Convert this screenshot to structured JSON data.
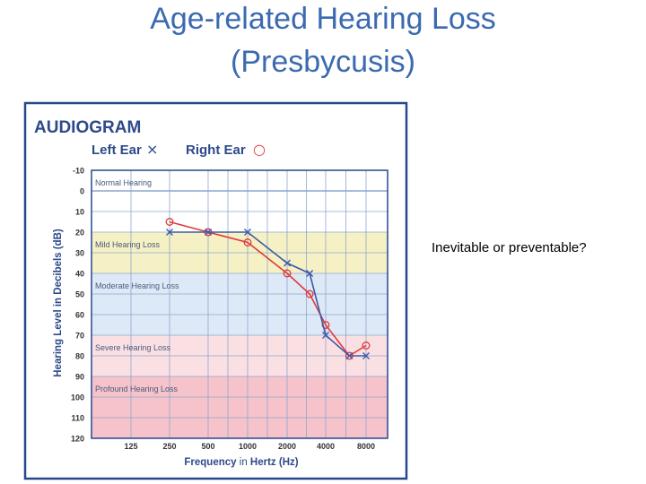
{
  "slide": {
    "title_line1": "Age-related Hearing Loss",
    "title_line2": "(Presbycusis)",
    "side_text": "Inevitable or preventable?"
  },
  "chart_data": {
    "type": "line",
    "title": "AUDIOGRAM",
    "xlabel_main": "Frequency",
    "xlabel_mid": "in",
    "xlabel_unit": "Hertz (Hz)",
    "ylabel": "Hearing Level in Decibels (dB)",
    "legend": {
      "left_label": "Left Ear",
      "left_marker": "×",
      "right_label": "Right Ear",
      "right_marker": "○"
    },
    "x_ticks": [
      "125",
      "250",
      "500",
      "1000",
      "2000",
      "4000",
      "8000"
    ],
    "y_ticks": [
      "-10",
      "0",
      "10",
      "20",
      "30",
      "40",
      "50",
      "60",
      "70",
      "80",
      "90",
      "100",
      "110",
      "120"
    ],
    "ylim": [
      -10,
      120
    ],
    "y_inverted": true,
    "grid": true,
    "bands": [
      {
        "label": "Normal Hearing",
        "from": -10,
        "to": 20,
        "color": "#ffffff"
      },
      {
        "label": "Mild Hearing Loss",
        "from": 20,
        "to": 40,
        "color": "#f6f1c4"
      },
      {
        "label": "Moderate Hearing Loss",
        "from": 40,
        "to": 70,
        "color": "#dde9f7"
      },
      {
        "label": "Severe Hearing Loss",
        "from": 70,
        "to": 90,
        "color": "#fbe0e3"
      },
      {
        "label": "Profound Hearing Loss",
        "from": 90,
        "to": 120,
        "color": "#f6c3cb"
      }
    ],
    "series": [
      {
        "name": "Right Ear",
        "marker": "circle",
        "color": "#e03a3a",
        "points": [
          [
            250,
            15
          ],
          [
            500,
            20
          ],
          [
            1000,
            25
          ],
          [
            2000,
            40
          ],
          [
            3000,
            50
          ],
          [
            4000,
            65
          ],
          [
            6000,
            80
          ],
          [
            8000,
            75
          ]
        ]
      },
      {
        "name": "Left Ear",
        "marker": "x",
        "color": "#3e5aa8",
        "points": [
          [
            250,
            20
          ],
          [
            500,
            20
          ],
          [
            1000,
            20
          ],
          [
            2000,
            35
          ],
          [
            3000,
            40
          ],
          [
            4000,
            70
          ],
          [
            6000,
            80
          ],
          [
            8000,
            80
          ]
        ]
      }
    ],
    "colors": {
      "frame": "#27478f",
      "title": "#2d4a8a",
      "legend_text": "#2d4a8a",
      "tick_text": "#333333",
      "grid": "#8ea6cf"
    }
  }
}
